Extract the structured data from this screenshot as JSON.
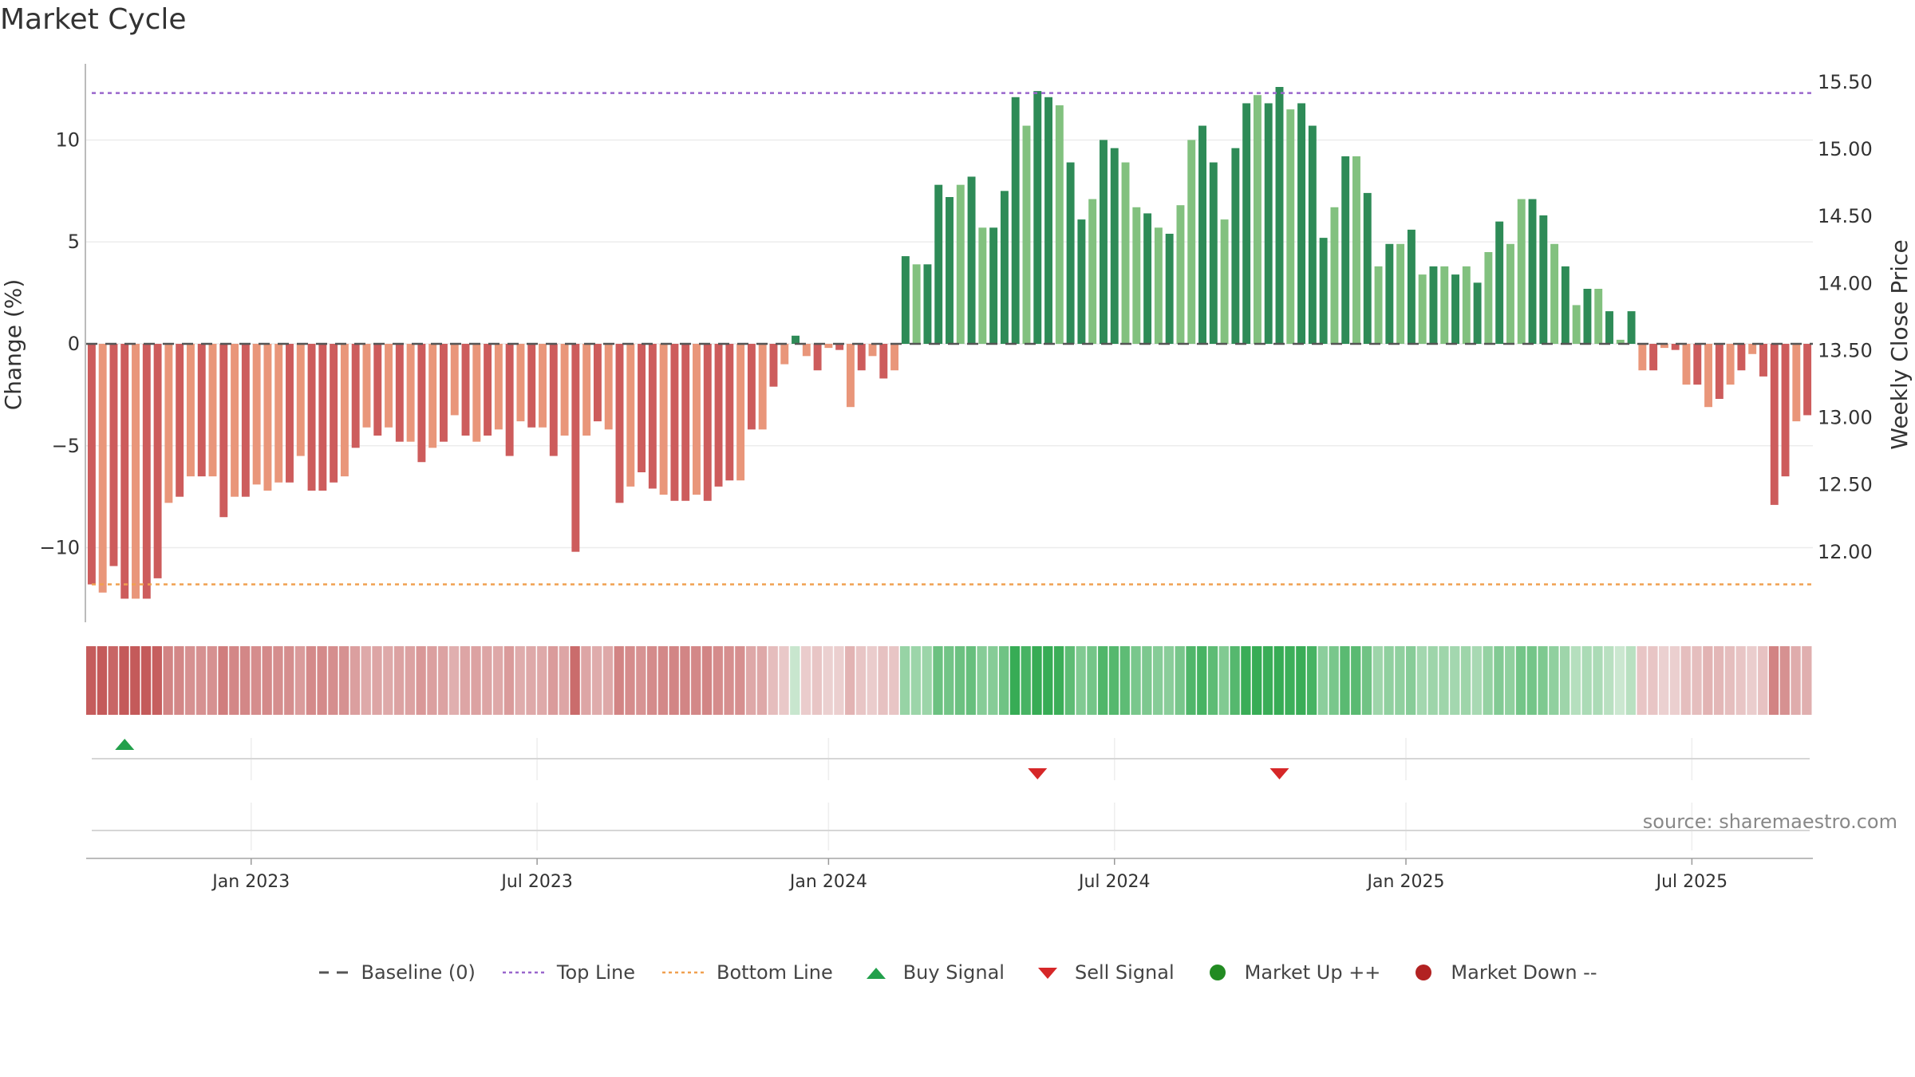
{
  "title": "Market Cycle",
  "source": "source: sharemaestro.com",
  "colors": {
    "up_dark": "#2e8b57",
    "up_light": "#82c17f",
    "down_dark": "#cd5c5c",
    "down_light": "#e9967a",
    "top_line": "#9966cc",
    "bottom_line": "#f0a050",
    "baseline": "#555555",
    "buy": "#22a04b",
    "sell": "#d62728",
    "market_up": "#228b22",
    "market_down": "#b22222"
  },
  "legend": [
    {
      "label": "Baseline (0)",
      "icon": "dash-line-icon"
    },
    {
      "label": "Top Line",
      "icon": "dotted-purple-line-icon"
    },
    {
      "label": "Bottom Line",
      "icon": "dotted-orange-line-icon"
    },
    {
      "label": "Buy Signal",
      "icon": "triangle-up-icon"
    },
    {
      "label": "Sell Signal",
      "icon": "triangle-down-icon"
    },
    {
      "label": "Market Up ++",
      "icon": "green-dot-icon"
    },
    {
      "label": "Market Down --",
      "icon": "red-dot-icon"
    }
  ],
  "chart_data": {
    "type": "bar",
    "title": "Market Cycle",
    "ylabel": "Change (%)",
    "y2label": "Weekly Close Price",
    "ylim": [
      -13.5,
      13.5
    ],
    "y2lim": [
      11.5,
      15.6
    ],
    "yticks": [
      -10,
      -5,
      0,
      5,
      10
    ],
    "y2ticks": [
      "12.00",
      "12.50",
      "13.00",
      "13.50",
      "14.00",
      "14.50",
      "15.00",
      "15.50"
    ],
    "top_line": 12.3,
    "bottom_line": -11.8,
    "xticks": [
      {
        "label": "Jan 2023",
        "week": 15
      },
      {
        "label": "Jul 2023",
        "week": 41
      },
      {
        "label": "Jan 2024",
        "week": 67.5
      },
      {
        "label": "Jul 2024",
        "week": 93.5
      },
      {
        "label": "Jan 2025",
        "week": 120
      },
      {
        "label": "Jul 2025",
        "week": 146
      }
    ],
    "weeks": 157,
    "values": [
      -11.8,
      -12.2,
      -10.9,
      -12.5,
      -12.5,
      -12.5,
      -11.5,
      -7.8,
      -7.5,
      -6.5,
      -6.5,
      -6.5,
      -8.5,
      -7.5,
      -7.5,
      -6.9,
      -7.2,
      -6.8,
      -6.8,
      -5.5,
      -7.2,
      -7.2,
      -6.8,
      -6.5,
      -5.1,
      -4.1,
      -4.5,
      -4.1,
      -4.8,
      -4.8,
      -5.8,
      -5.1,
      -4.8,
      -3.5,
      -4.5,
      -4.8,
      -4.5,
      -4.2,
      -5.5,
      -3.8,
      -4.1,
      -4.1,
      -5.5,
      -4.5,
      -10.2,
      -4.5,
      -3.8,
      -4.2,
      -7.8,
      -7.0,
      -6.3,
      -7.1,
      -7.4,
      -7.7,
      -7.7,
      -7.4,
      -7.7,
      -7.0,
      -6.7,
      -6.7,
      -4.2,
      -4.2,
      -2.1,
      -1.0,
      0.4,
      -0.6,
      -1.3,
      -0.2,
      -0.3,
      -3.1,
      -1.3,
      -0.6,
      -1.7,
      -1.3,
      4.3,
      3.9,
      3.9,
      7.8,
      7.2,
      7.8,
      8.2,
      5.7,
      5.7,
      7.5,
      12.1,
      10.7,
      12.4,
      12.1,
      11.7,
      8.9,
      6.1,
      7.1,
      10.0,
      9.6,
      8.9,
      6.7,
      6.4,
      5.7,
      5.4,
      6.8,
      10.0,
      10.7,
      8.9,
      6.1,
      9.6,
      11.8,
      12.2,
      11.8,
      12.6,
      11.5,
      11.8,
      10.7,
      5.2,
      6.7,
      9.2,
      9.2,
      7.4,
      3.8,
      4.9,
      4.9,
      5.6,
      3.4,
      3.8,
      3.8,
      3.4,
      3.8,
      3.0,
      4.5,
      6.0,
      4.9,
      7.1,
      7.1,
      6.3,
      4.9,
      3.8,
      1.9,
      2.7,
      2.7,
      1.6,
      0.2,
      1.6,
      -1.3,
      -1.3,
      -0.2,
      -0.3,
      -2.0,
      -2.0,
      -3.1,
      -2.7,
      -2.0,
      -1.3,
      -0.5,
      -1.6,
      -7.9,
      -6.5,
      -3.8,
      -3.5
    ],
    "series": [
      {
        "name": "Baseline (0)",
        "values": [
          0
        ]
      },
      {
        "name": "Top Line",
        "values": [
          12.3
        ]
      },
      {
        "name": "Bottom Line",
        "values": [
          -11.8
        ]
      }
    ],
    "signals": {
      "buy": [
        {
          "week": 3
        }
      ],
      "sell": [
        {
          "week": 86
        },
        {
          "week": 108
        }
      ]
    },
    "grid": true,
    "legend_position": "bottom"
  }
}
